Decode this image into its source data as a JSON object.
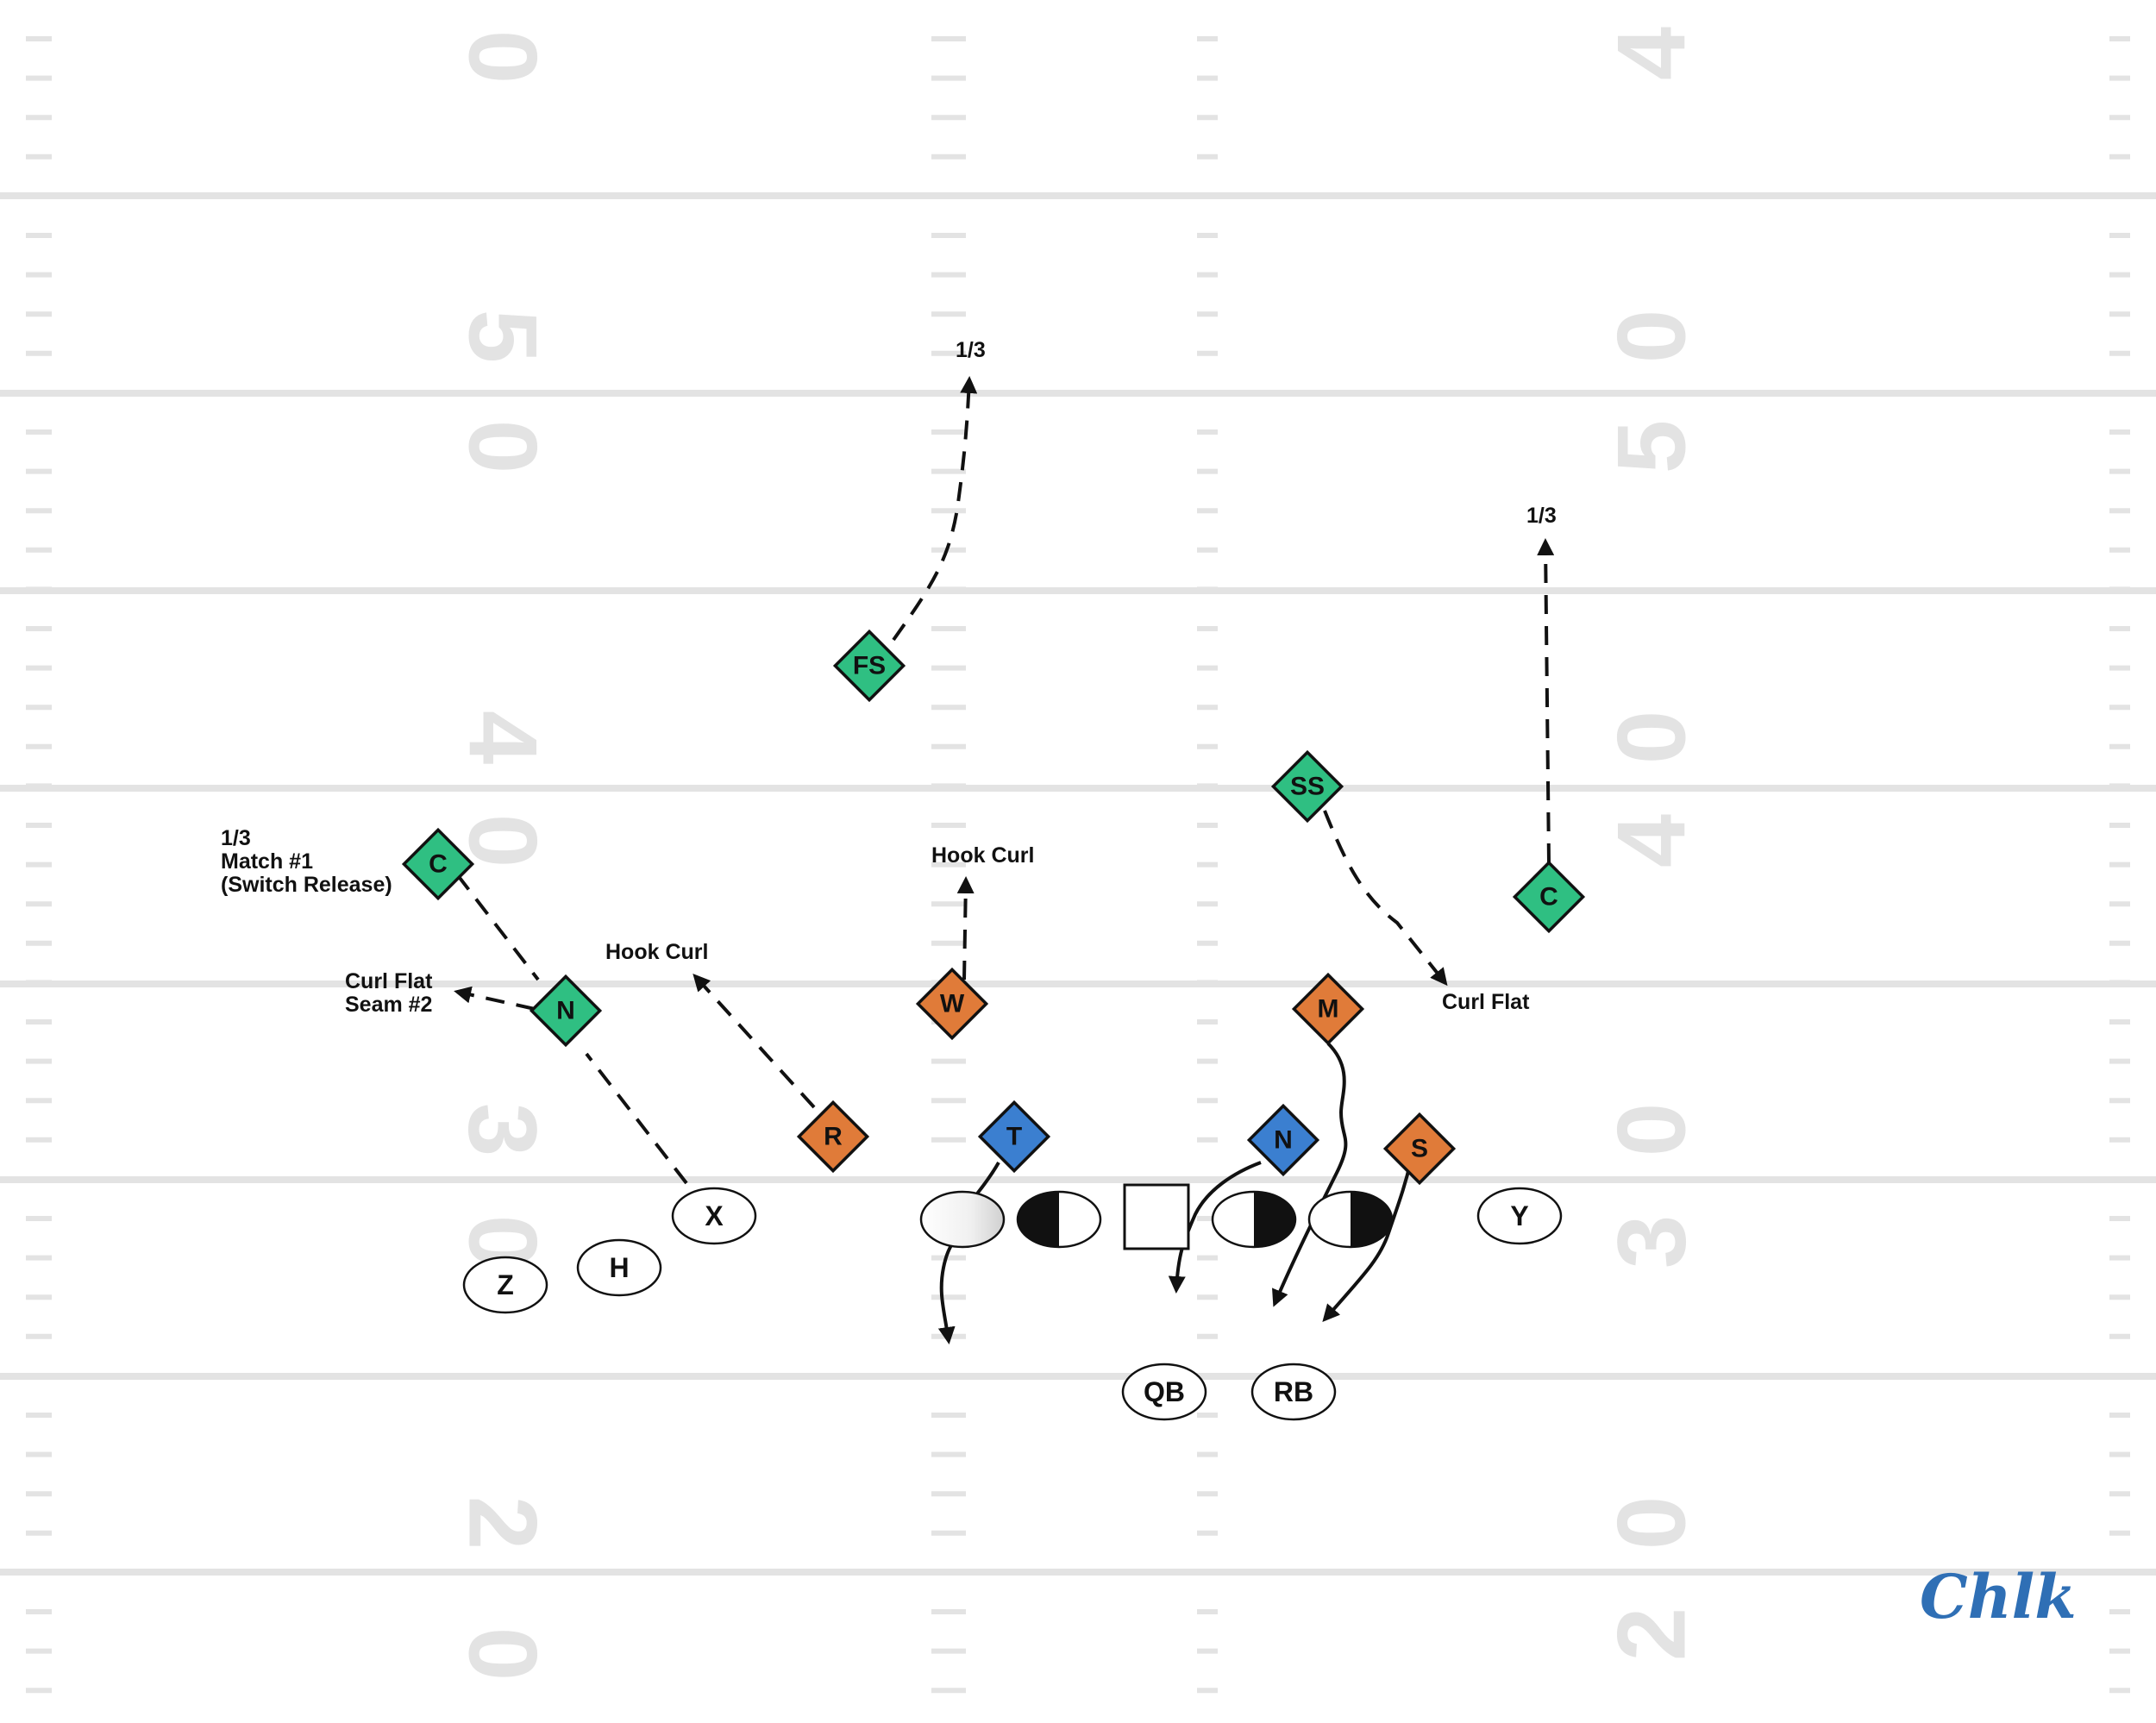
{
  "field": {
    "yard_numbers": {
      "left_top": "0",
      "right_top": "4",
      "left_50_a": "5",
      "left_50_b": "0",
      "right_50_a": "0",
      "right_50_b": "5",
      "left_40_a": "4",
      "left_40_b": "0",
      "right_40_a": "0",
      "right_40_b": "4",
      "left_30_a": "3",
      "left_30_b": "0",
      "right_30_a": "0",
      "right_30_b": "3",
      "left_20_a": "2",
      "left_20_b": "0",
      "right_20_a": "0",
      "right_20_b": "2"
    }
  },
  "colors": {
    "defense_back": "#2fbf82",
    "defense_lb": "#e07b39",
    "defense_line": "#3b7fd0",
    "logo": "#2f6fb5"
  },
  "defense": {
    "fs": "FS",
    "ss": "SS",
    "c_left": "C",
    "c_right": "C",
    "n_left": "N",
    "r": "R",
    "w": "W",
    "m": "M",
    "t": "T",
    "n_line": "N",
    "s": "S"
  },
  "offense": {
    "x": "X",
    "h": "H",
    "z": "Z",
    "y": "Y",
    "qb": "QB",
    "rb": "RB"
  },
  "notes": {
    "fs_zone": "1/3",
    "c_right_zone": "1/3",
    "c_left_line1": "1/3",
    "c_left_line2": "Match #1",
    "c_left_line3": "(Switch Release)",
    "n_left_line1": "Curl Flat",
    "n_left_line2": "Seam #2",
    "r_zone": "Hook Curl",
    "w_zone": "Hook Curl",
    "ss_zone": "Curl Flat"
  },
  "logo": {
    "text": "Chlk"
  }
}
